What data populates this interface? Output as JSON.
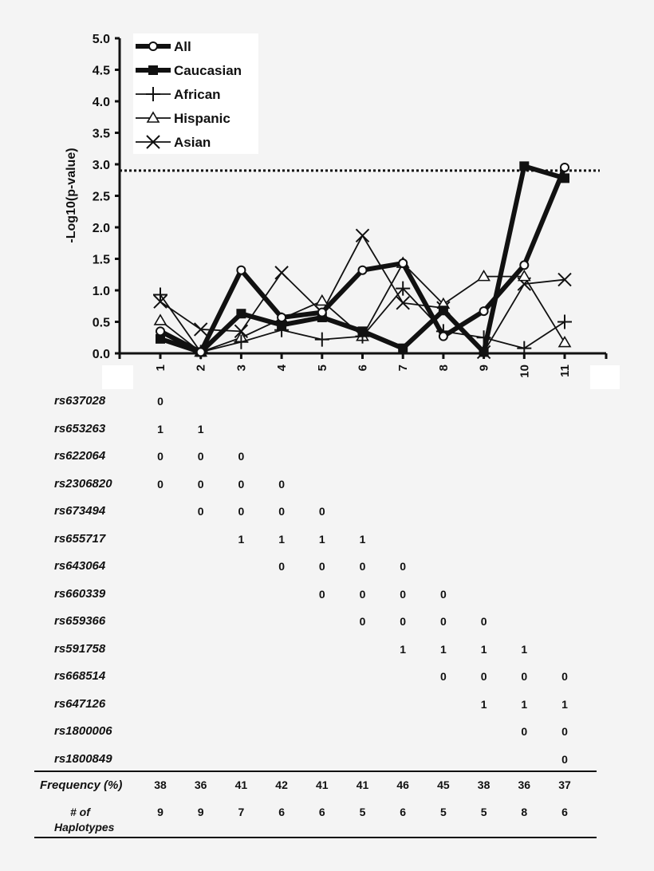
{
  "chart_data": {
    "type": "line",
    "ylabel": "-Log10(p-value)",
    "xlabel": "",
    "ylim": [
      0,
      5.0
    ],
    "yticks": [
      "0.0",
      "0.5",
      "1.0",
      "1.5",
      "2.0",
      "2.5",
      "3.0",
      "3.5",
      "4.0",
      "4.5",
      "5.0"
    ],
    "categories": [
      "1",
      "2",
      "3",
      "4",
      "5",
      "6",
      "7",
      "8",
      "9",
      "10",
      "11"
    ],
    "threshold": 2.9,
    "legend_position": "top-left",
    "series": [
      {
        "name": "All",
        "marker": "open-circle",
        "weight": "thick",
        "values": [
          0.35,
          0.02,
          1.32,
          0.57,
          0.65,
          1.32,
          1.43,
          0.27,
          0.67,
          1.4,
          2.95
        ]
      },
      {
        "name": "Caucasian",
        "marker": "filled-square",
        "weight": "thick",
        "values": [
          0.23,
          0.02,
          0.63,
          0.45,
          0.57,
          0.35,
          0.08,
          0.68,
          0.02,
          2.97,
          2.78
        ]
      },
      {
        "name": "African",
        "marker": "plus",
        "weight": "thin",
        "values": [
          0.93,
          0.02,
          0.18,
          0.37,
          0.22,
          0.27,
          1.03,
          0.35,
          0.25,
          0.08,
          0.5
        ]
      },
      {
        "name": "Hispanic",
        "marker": "open-triangle",
        "weight": "thin",
        "values": [
          0.52,
          0.02,
          0.25,
          0.55,
          0.83,
          0.27,
          1.43,
          0.78,
          1.22,
          1.22,
          0.17
        ]
      },
      {
        "name": "Asian",
        "marker": "x",
        "weight": "thin",
        "values": [
          0.82,
          0.38,
          0.35,
          1.28,
          0.65,
          1.87,
          0.8,
          0.72,
          0.02,
          1.1,
          1.17
        ]
      }
    ]
  },
  "table": {
    "rows": [
      {
        "snp": "rs637028",
        "values": [
          "0",
          null,
          null,
          null,
          null,
          null,
          null,
          null,
          null,
          null,
          null
        ]
      },
      {
        "snp": "rs653263",
        "values": [
          "1",
          "1",
          null,
          null,
          null,
          null,
          null,
          null,
          null,
          null,
          null
        ]
      },
      {
        "snp": "rs622064",
        "values": [
          "0",
          "0",
          "0",
          null,
          null,
          null,
          null,
          null,
          null,
          null,
          null
        ]
      },
      {
        "snp": "rs2306820",
        "values": [
          "0",
          "0",
          "0",
          "0",
          null,
          null,
          null,
          null,
          null,
          null,
          null
        ]
      },
      {
        "snp": "rs673494",
        "values": [
          null,
          "0",
          "0",
          "0",
          "0",
          null,
          null,
          null,
          null,
          null,
          null
        ]
      },
      {
        "snp": "rs655717",
        "values": [
          null,
          null,
          "1",
          "1",
          "1",
          "1",
          null,
          null,
          null,
          null,
          null
        ]
      },
      {
        "snp": "rs643064",
        "values": [
          null,
          null,
          null,
          "0",
          "0",
          "0",
          "0",
          null,
          null,
          null,
          null
        ]
      },
      {
        "snp": "rs660339",
        "values": [
          null,
          null,
          null,
          null,
          "0",
          "0",
          "0",
          "0",
          null,
          null,
          null
        ]
      },
      {
        "snp": "rs659366",
        "values": [
          null,
          null,
          null,
          null,
          null,
          "0",
          "0",
          "0",
          "0",
          null,
          null
        ]
      },
      {
        "snp": "rs591758",
        "values": [
          null,
          null,
          null,
          null,
          null,
          null,
          "1",
          "1",
          "1",
          "1",
          null
        ]
      },
      {
        "snp": "rs668514",
        "values": [
          null,
          null,
          null,
          null,
          null,
          null,
          null,
          "0",
          "0",
          "0",
          "0"
        ]
      },
      {
        "snp": "rs647126",
        "values": [
          null,
          null,
          null,
          null,
          null,
          null,
          null,
          null,
          "1",
          "1",
          "1"
        ]
      },
      {
        "snp": "rs1800006",
        "values": [
          null,
          null,
          null,
          null,
          null,
          null,
          null,
          null,
          null,
          "0",
          "0"
        ]
      },
      {
        "snp": "rs1800849",
        "values": [
          null,
          null,
          null,
          null,
          null,
          null,
          null,
          null,
          null,
          null,
          "0"
        ]
      }
    ],
    "frequency_label": "Frequency (%)",
    "frequency": [
      "38",
      "36",
      "41",
      "42",
      "41",
      "41",
      "46",
      "45",
      "38",
      "36",
      "37"
    ],
    "haplotypes_label_1": "# of",
    "haplotypes_label_2": "Haplotypes",
    "haplotypes": [
      "9",
      "9",
      "7",
      "6",
      "6",
      "5",
      "6",
      "5",
      "5",
      "8",
      "6"
    ]
  }
}
